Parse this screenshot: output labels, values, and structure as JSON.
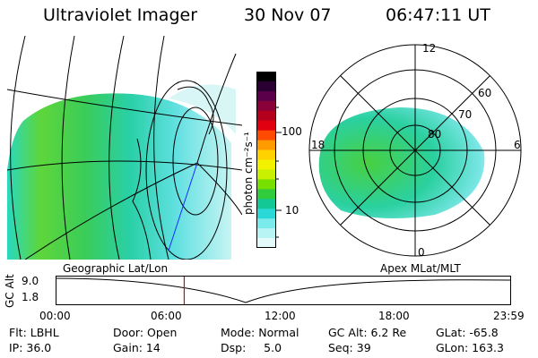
{
  "header": {
    "instrument": "Ultraviolet Imager",
    "date": "30 Nov 07",
    "time": "06:47:11 UT"
  },
  "colorbar": {
    "unit_label": "photon cm⁻²s⁻¹",
    "ticks": [
      "100",
      "10"
    ],
    "colors": [
      "#000000",
      "#2a0033",
      "#5a004a",
      "#8a0038",
      "#b4001c",
      "#e00010",
      "#ff4a00",
      "#ff9a00",
      "#ffd200",
      "#f2f200",
      "#c8f000",
      "#78e000",
      "#30cc3c",
      "#14c896",
      "#2ad8d8",
      "#7aeaea",
      "#b8f4f4",
      "#e4fafa"
    ]
  },
  "left_panel": {
    "projection_label": "Geographic Lat/Lon"
  },
  "right_panel": {
    "projection_label": "Apex MLat/MLT",
    "mlt_labels": {
      "top": "12",
      "left": "18",
      "right": "6",
      "bottom": "0"
    },
    "lat_labels": [
      "60",
      "70",
      "80"
    ]
  },
  "altitude_plot": {
    "ylabel": "GC Alt",
    "yticks": [
      "9.0",
      "1.8"
    ],
    "xticks": [
      "00:00",
      "06:00",
      "12:00",
      "18:00",
      "23:59"
    ],
    "current_time_marker_hours": 6.79
  },
  "status": {
    "flt": "Flt: LBHL",
    "ip": "IP: 36.0",
    "door": "Door: Open",
    "gain": "Gain: 14",
    "mode": "Mode: Normal",
    "dsp": "Dsp:     5.0",
    "gc_alt": "GC Alt: 6.2 Re",
    "seq": "Seq: 39",
    "glat": "GLat: -65.8",
    "glon": "GLon: 163.3"
  }
}
